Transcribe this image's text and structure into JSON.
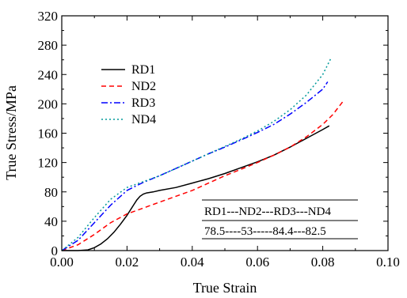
{
  "chart_data": {
    "type": "line",
    "xlabel": "True Strain",
    "ylabel": "True Stress/MPa",
    "xlim": [
      0.0,
      0.1
    ],
    "ylim": [
      0,
      320
    ],
    "xticks": [
      "0.00",
      "0.02",
      "0.04",
      "0.06",
      "0.08",
      "0.10"
    ],
    "yticks": [
      "0",
      "40",
      "80",
      "120",
      "160",
      "200",
      "240",
      "280",
      "320"
    ],
    "legend_position": "upper-left",
    "grid": false,
    "series": [
      {
        "name": "RD1",
        "color": "#000000",
        "dash": "solid",
        "x": [
          0.0,
          0.005,
          0.008,
          0.01,
          0.012,
          0.014,
          0.016,
          0.018,
          0.02,
          0.022,
          0.023,
          0.024,
          0.025,
          0.026,
          0.028,
          0.03,
          0.035,
          0.04,
          0.045,
          0.05,
          0.055,
          0.06,
          0.065,
          0.07,
          0.075,
          0.08,
          0.082
        ],
        "y": [
          0,
          0,
          1,
          4,
          9,
          16,
          25,
          36,
          48,
          62,
          69,
          74,
          77,
          78.5,
          80,
          82,
          86,
          92,
          98,
          105,
          113,
          121,
          130,
          141,
          153,
          165,
          170
        ]
      },
      {
        "name": "ND2",
        "color": "#ff0000",
        "dash": "dashed",
        "x": [
          0.0,
          0.005,
          0.01,
          0.015,
          0.02,
          0.025,
          0.03,
          0.035,
          0.04,
          0.045,
          0.05,
          0.055,
          0.06,
          0.065,
          0.07,
          0.075,
          0.08,
          0.083,
          0.0865
        ],
        "y": [
          0,
          8,
          22,
          38,
          50,
          58,
          66,
          74,
          82,
          92,
          102,
          111,
          120,
          130,
          141,
          155,
          172,
          185,
          205
        ]
      },
      {
        "name": "RD3",
        "color": "#0000ff",
        "dash": "dashdot",
        "x": [
          0.0,
          0.005,
          0.01,
          0.015,
          0.02,
          0.025,
          0.03,
          0.035,
          0.04,
          0.045,
          0.05,
          0.055,
          0.06,
          0.065,
          0.07,
          0.075,
          0.08,
          0.0815
        ],
        "y": [
          0,
          14,
          38,
          62,
          82,
          93,
          102,
          112,
          122,
          132,
          141,
          151,
          161,
          172,
          186,
          202,
          220,
          230
        ]
      },
      {
        "name": "ND4",
        "color": "#009a9a",
        "dash": "dotted",
        "x": [
          0.0,
          0.005,
          0.01,
          0.015,
          0.02,
          0.025,
          0.03,
          0.035,
          0.04,
          0.045,
          0.05,
          0.055,
          0.06,
          0.065,
          0.07,
          0.075,
          0.08,
          0.0825
        ],
        "y": [
          0,
          18,
          45,
          70,
          86,
          94,
          102,
          112,
          122,
          132,
          142,
          152,
          163,
          176,
          192,
          212,
          240,
          262
        ]
      }
    ],
    "annotation_table": {
      "header": "RD1---ND2---RD3---ND4",
      "values": "78.5----53-----84.4---82.5"
    }
  }
}
